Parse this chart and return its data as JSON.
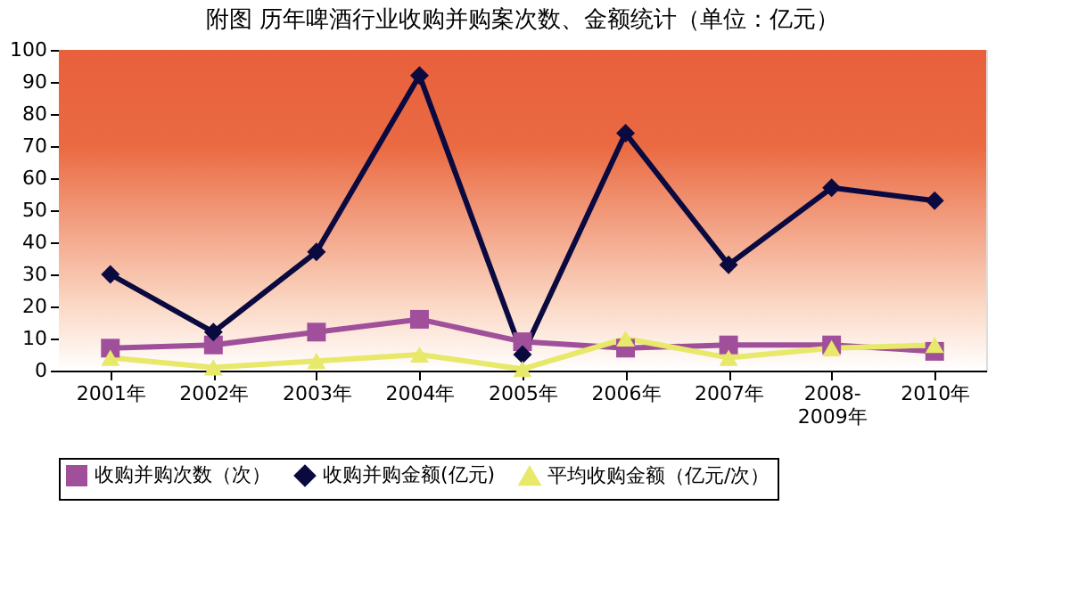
{
  "chart_data": {
    "type": "line",
    "title": "附图  历年啤酒行业收购并购案次数、金额统计（单位：亿元）",
    "categories": [
      "2001年",
      "2002年",
      "2003年",
      "2004年",
      "2005年",
      "2006年",
      "2007年",
      "2008-2009年",
      "2010年"
    ],
    "series": [
      {
        "name": "收购并购次数（次）",
        "color": "#a0509a",
        "marker": "square",
        "values": [
          7,
          8,
          12,
          16,
          9,
          7,
          8,
          8,
          6
        ]
      },
      {
        "name": "收购并购金额(亿元)",
        "color": "#0a0a40",
        "marker": "diamond",
        "values": [
          30,
          12,
          37,
          92,
          5,
          74,
          33,
          57,
          53
        ]
      },
      {
        "name": "平均收购金额（亿元/次）",
        "color": "#e8e86a",
        "marker": "triangle",
        "values": [
          4,
          1,
          3,
          5,
          0.5,
          10,
          4,
          7,
          8
        ]
      }
    ],
    "ylim": [
      0,
      100
    ],
    "yticks": [
      0,
      10,
      20,
      30,
      40,
      50,
      60,
      70,
      80,
      90,
      100
    ],
    "legend": "bottom",
    "line_style": "solid"
  }
}
